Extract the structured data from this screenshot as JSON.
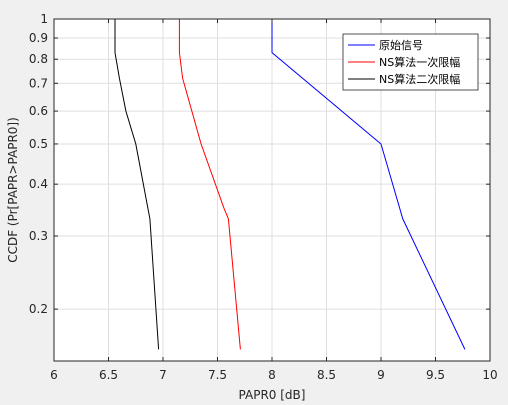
{
  "chart_data": {
    "type": "line",
    "xlabel": "PAPR0 [dB]",
    "ylabel": "CCDF (Pr[PAPR>PAPR0])",
    "xlim": [
      6,
      10
    ],
    "ylim": [
      0.15,
      1
    ],
    "yscale": "log",
    "grid": true,
    "legend_position": "top-right",
    "xticks": [
      "6",
      "6.5",
      "7",
      "7.5",
      "8",
      "8.5",
      "9",
      "9.5",
      "10"
    ],
    "yticks": [
      "0.2",
      "0.3",
      "0.4",
      "0.5",
      "0.6",
      "0.7",
      "0.8",
      "0.9",
      "1"
    ],
    "series": [
      {
        "name": "原始信号",
        "color": "#0000ff",
        "points": [
          [
            8.0,
            1.0
          ],
          [
            8.0,
            0.83
          ],
          [
            9.0,
            0.5
          ],
          [
            9.2,
            0.33
          ],
          [
            9.77,
            0.16
          ]
        ]
      },
      {
        "name": "NS算法一次限幅",
        "color": "#ff0000",
        "points": [
          [
            7.15,
            1.0
          ],
          [
            7.15,
            0.83
          ],
          [
            7.18,
            0.72
          ],
          [
            7.22,
            0.66
          ],
          [
            7.35,
            0.5
          ],
          [
            7.56,
            0.35
          ],
          [
            7.6,
            0.33
          ],
          [
            7.71,
            0.16
          ]
        ]
      },
      {
        "name": "NS算法二次限幅",
        "color": "#000000",
        "points": [
          [
            6.56,
            1.0
          ],
          [
            6.56,
            0.83
          ],
          [
            6.6,
            0.72
          ],
          [
            6.66,
            0.6
          ],
          [
            6.75,
            0.5
          ],
          [
            6.88,
            0.33
          ],
          [
            6.96,
            0.16
          ]
        ]
      }
    ]
  }
}
